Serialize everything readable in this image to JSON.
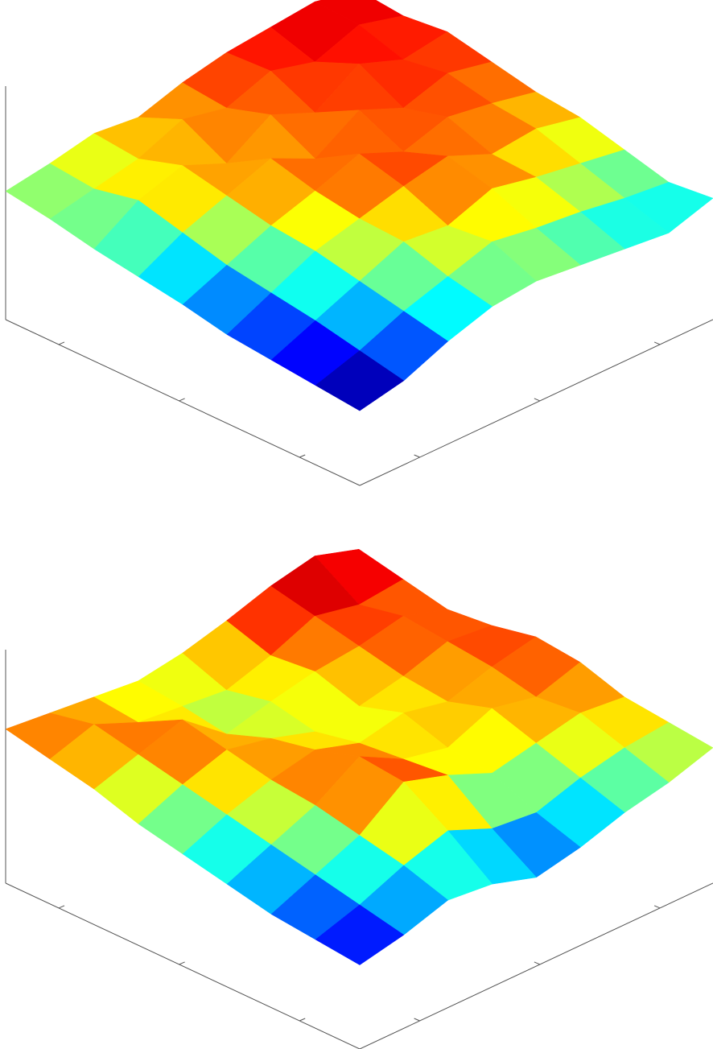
{
  "chart_data": [
    {
      "type": "surface",
      "colormap": "jet",
      "clim": [
        0.33,
        0.76
      ],
      "zlim": [
        0,
        1
      ],
      "xlim": [
        0,
        1
      ],
      "ylim": [
        0,
        1
      ],
      "xticks": [
        0.15,
        0.49,
        0.83
      ],
      "yticks": [
        0.17,
        0.51,
        0.85
      ],
      "z": [
        [
          0.55,
          0.58,
          0.62,
          0.6,
          0.66,
          0.7,
          0.72,
          0.74,
          0.7
        ],
        [
          0.52,
          0.56,
          0.6,
          0.68,
          0.64,
          0.71,
          0.66,
          0.73,
          0.68
        ],
        [
          0.48,
          0.6,
          0.66,
          0.58,
          0.7,
          0.62,
          0.74,
          0.67,
          0.7
        ],
        [
          0.45,
          0.55,
          0.62,
          0.69,
          0.6,
          0.72,
          0.64,
          0.7,
          0.66
        ],
        [
          0.42,
          0.5,
          0.58,
          0.64,
          0.71,
          0.63,
          0.69,
          0.66,
          0.62
        ],
        [
          0.38,
          0.47,
          0.56,
          0.61,
          0.66,
          0.7,
          0.62,
          0.64,
          0.6
        ],
        [
          0.36,
          0.44,
          0.52,
          0.6,
          0.58,
          0.65,
          0.61,
          0.58,
          0.55
        ],
        [
          0.34,
          0.4,
          0.48,
          0.54,
          0.6,
          0.57,
          0.55,
          0.52,
          0.5
        ],
        [
          0.32,
          0.36,
          0.44,
          0.5,
          0.52,
          0.5,
          0.48,
          0.46,
          0.52
        ]
      ]
    },
    {
      "type": "surface",
      "colormap": "jet",
      "clim": [
        0.33,
        0.76
      ],
      "zlim": [
        0,
        1
      ],
      "xlim": [
        0,
        1
      ],
      "ylim": [
        0,
        1
      ],
      "xticks": [
        0.15,
        0.49,
        0.83
      ],
      "yticks": [
        0.17,
        0.51,
        0.85
      ],
      "z": [
        [
          0.66,
          0.64,
          0.62,
          0.6,
          0.63,
          0.68,
          0.74,
          0.78,
          0.72
        ],
        [
          0.62,
          0.68,
          0.6,
          0.58,
          0.56,
          0.62,
          0.7,
          0.66,
          0.68
        ],
        [
          0.58,
          0.64,
          0.7,
          0.55,
          0.6,
          0.64,
          0.66,
          0.7,
          0.64
        ],
        [
          0.52,
          0.6,
          0.66,
          0.62,
          0.56,
          0.58,
          0.62,
          0.68,
          0.66
        ],
        [
          0.48,
          0.56,
          0.62,
          0.66,
          0.6,
          0.64,
          0.6,
          0.66,
          0.7
        ],
        [
          0.44,
          0.52,
          0.6,
          0.72,
          0.62,
          0.58,
          0.66,
          0.62,
          0.68
        ],
        [
          0.4,
          0.48,
          0.56,
          0.7,
          0.64,
          0.56,
          0.6,
          0.64,
          0.62
        ],
        [
          0.38,
          0.44,
          0.52,
          0.58,
          0.5,
          0.48,
          0.54,
          0.58,
          0.6
        ],
        [
          0.36,
          0.4,
          0.46,
          0.44,
          0.38,
          0.42,
          0.48,
          0.52,
          0.58
        ]
      ]
    }
  ]
}
